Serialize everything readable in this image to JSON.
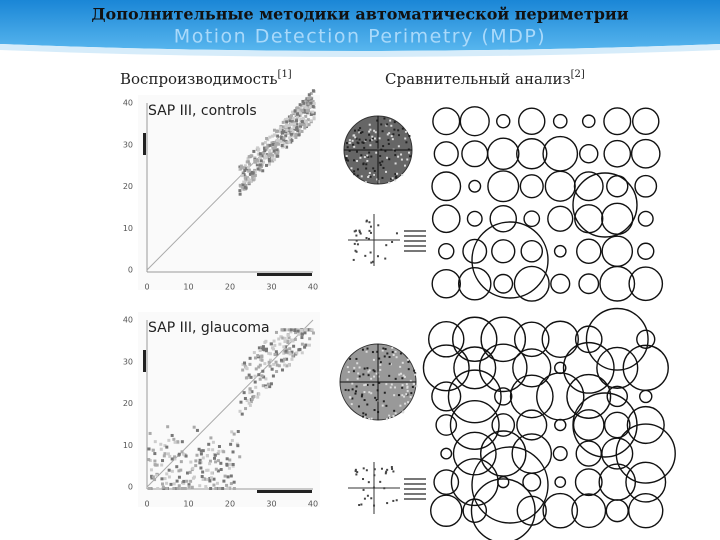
{
  "header": {
    "title": "Дополнительные методики автоматической периметрии",
    "subtitle": "Motion Detection Perimetry (MDP)"
  },
  "left": {
    "heading": "Воспроизводимость",
    "ref": "[1]",
    "plots": [
      {
        "label": "SAP III, controls",
        "yticks": [
          "40",
          "30",
          "20",
          "10",
          "0"
        ],
        "xticks": [
          "0",
          "10",
          "20",
          "30",
          "40"
        ]
      },
      {
        "label": "SAP III, glaucoma",
        "yticks": [
          "40",
          "30",
          "20",
          "10",
          "0"
        ],
        "xticks": [
          "0",
          "10",
          "20",
          "30",
          "40"
        ]
      }
    ]
  },
  "right": {
    "heading": "Сравнительный анализ",
    "ref": "[2]"
  }
}
